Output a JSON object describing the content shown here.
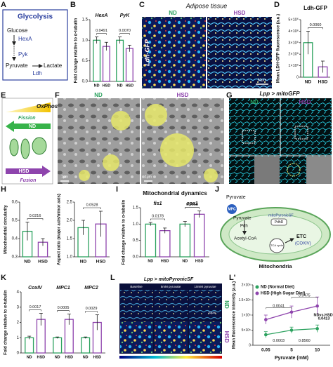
{
  "panels": {
    "A": {
      "letter": "A",
      "title": "Glycolysis",
      "glucose": "Glucose",
      "hexa": "HexA",
      "pyk": "Pyk",
      "pyruvate": "Pyruvate",
      "lactate": "Lactate",
      "ldh": "Ldh"
    },
    "B": {
      "letter": "B"
    },
    "C": {
      "letter": "C",
      "title": "Adipose tissue",
      "nd": "ND",
      "hsd": "HSD",
      "stain": "Ldh-GFP",
      "scale": "50μm"
    },
    "D": {
      "letter": "D"
    },
    "E": {
      "letter": "E",
      "oxphos": "OxPhos",
      "fission": "Fission",
      "nd": "ND",
      "hsd": "HSD",
      "fusion": "Fusion"
    },
    "F": {
      "letter": "F",
      "nd": "ND",
      "hsd": "HSD",
      "scale_nd": "1μm",
      "scale_hsd": "1μm"
    },
    "G": {
      "letter": "G",
      "title": "Lpp > mitoGFP",
      "nd": "ND",
      "hsd": "HSD"
    },
    "H": {
      "letter": "H"
    },
    "I": {
      "letter": "I"
    },
    "J": {
      "letter": "J",
      "pyruvate_out": "Pyruvate",
      "mpc": "MPC",
      "pyruvate_in": "Pyruvate",
      "sensor": "mitoPyronicSF",
      "pdhr": "PdhR",
      "pdh": "Pdh",
      "acetyl": "Acetyl-CoA",
      "tca": "TCA cycle",
      "etc": "ETC",
      "coxiv": "(COXIV)",
      "title": "Mitochondria"
    },
    "K": {
      "letter": "K"
    },
    "L": {
      "letter": "L",
      "title": "Lpp > mitoPyronicSF",
      "baseline": "Baseline",
      "p5": "5mM pyruvate",
      "p10": "10mM pyruvate",
      "nd": "ND",
      "hsd": "HSD",
      "scale": "10μm"
    },
    "L2": {
      "letter": "L'"
    }
  },
  "chart_data": [
    {
      "type": "bar",
      "ylabel": "Fold change relative to α-tubulin",
      "categories": [
        "HexA",
        "PyK"
      ],
      "series": [
        {
          "name": "ND",
          "color": "#2ca25f",
          "values": [
            1.0,
            1.0
          ],
          "errors": [
            0.08,
            0.08
          ]
        },
        {
          "name": "HSD",
          "color": "#8e44ad",
          "values": [
            0.85,
            0.8
          ],
          "errors": [
            0.1,
            0.08
          ]
        }
      ],
      "pvalues": [
        "0.0491",
        "0.0070"
      ],
      "ylim": [
        0,
        1.5
      ],
      "yticks": [
        {
          "value": 0,
          "label": "0.0"
        },
        0.5,
        {
          "value": 1,
          "label": "1.0"
        },
        1.5
      ]
    },
    {
      "type": "bar",
      "title": "Ldh-GFP",
      "ylabel": "Mean LDH-GFP fluorescence (a.u.)",
      "categories": [
        "ND",
        "HSD"
      ],
      "values": [
        3000000,
        900000
      ],
      "errors": [
        1000000,
        500000
      ],
      "colors": [
        "#2ca25f",
        "#8e44ad"
      ],
      "pvalues": [
        "0.0060"
      ],
      "ylim": [
        0,
        5000000
      ],
      "yticks": [
        0,
        {
          "value": 1000000,
          "label": "1×10⁶"
        },
        {
          "value": 2000000,
          "label": "2×10⁶"
        },
        {
          "value": 3000000,
          "label": "3×10⁶"
        },
        {
          "value": 4000000,
          "label": "4×10⁶"
        },
        {
          "value": 5000000,
          "label": "5×10⁶"
        }
      ]
    },
    {
      "type": "bar",
      "ylabel": "Mitochondrial circularity",
      "categories": [
        "ND",
        "HSD"
      ],
      "values": [
        0.44,
        0.38
      ],
      "errors": [
        0.05,
        0.02
      ],
      "colors": [
        "#2ca25f",
        "#8e44ad"
      ],
      "pvalues": [
        "0.0216"
      ],
      "ylim": [
        0.3,
        0.6
      ],
      "yticks": [
        0.3,
        0.4,
        0.5,
        0.6
      ]
    },
    {
      "type": "bar",
      "ylabel": "Aspect ratio (major axis/minor axis)",
      "categories": [
        "ND",
        "HSD"
      ],
      "values": [
        1.8,
        1.9
      ],
      "errors": [
        0.2,
        0.35
      ],
      "colors": [
        "#2ca25f",
        "#8e44ad"
      ],
      "pvalues": [
        "0.0528"
      ],
      "ylim": [
        1,
        2.5
      ],
      "yticks": [
        {
          "value": 1,
          "label": "1.0"
        },
        1.5,
        {
          "value": 2,
          "label": "2.0"
        },
        2.5
      ]
    },
    {
      "type": "bar",
      "title": "Mitochondrial dynamics",
      "ylabel": "Fold change relative to α-tubulin",
      "categories": [
        "fis1",
        "opa1"
      ],
      "series": [
        {
          "name": "ND",
          "color": "#2ca25f",
          "values": [
            1.0,
            1.0
          ],
          "errors": [
            0.05,
            0.08
          ]
        },
        {
          "name": "HSD",
          "color": "#8e44ad",
          "values": [
            0.8,
            1.3
          ],
          "errors": [
            0.08,
            0.1
          ]
        }
      ],
      "pvalues": [
        "0.0178",
        "0.0018"
      ],
      "ylim": [
        0,
        1.5
      ],
      "yticks": [
        {
          "value": 0,
          "label": "0.0"
        },
        0.5,
        {
          "value": 1,
          "label": "1.0"
        },
        1.5
      ]
    },
    {
      "type": "bar",
      "ylabel": "Fold change relative to α-tubulin",
      "categories": [
        "CoxIV",
        "MPC1",
        "MPC2"
      ],
      "series": [
        {
          "name": "ND",
          "color": "#2ca25f",
          "values": [
            1.0,
            1.0,
            1.0
          ],
          "errors": [
            0.1,
            0.05,
            0.05
          ]
        },
        {
          "name": "HSD",
          "color": "#8e44ad",
          "values": [
            2.2,
            2.2,
            2.0
          ],
          "errors": [
            0.4,
            0.35,
            0.5
          ]
        }
      ],
      "pvalues": [
        "0.0017",
        "0.0005",
        "0.0029"
      ],
      "ylim": [
        0,
        4
      ],
      "yticks": [
        0,
        1,
        2,
        3,
        4
      ]
    },
    {
      "type": "line",
      "ylabel": "Mean fluorescence intensity (a.u.)",
      "xlabel": "Pyruvate (mM)",
      "categories": [
        "0.05",
        "5",
        "10"
      ],
      "series": [
        {
          "name": "ND (Normal Diet)",
          "color": "#2ca25f",
          "values": [
            350000,
            500000,
            550000
          ],
          "errors": [
            100000,
            100000,
            120000
          ]
        },
        {
          "name": "HSD (High Sugar Diet)",
          "color": "#8e44ad",
          "values": [
            850000,
            1100000,
            1300000
          ],
          "errors": [
            150000,
            200000,
            300000
          ]
        }
      ],
      "annotations": [
        "0.0041",
        "0.0475",
        "0.0003",
        "0.8560",
        "NDvs.HSD:",
        "0.0413"
      ],
      "ylim": [
        0,
        2000000
      ],
      "yticks": [
        0,
        {
          "value": 500000,
          "label": "5×10⁵"
        },
        {
          "value": 1000000,
          "label": "1×10⁶"
        },
        {
          "value": 1500000,
          "label": "1.5×10⁶"
        },
        {
          "value": 2000000,
          "label": "2×10⁶"
        }
      ]
    }
  ]
}
